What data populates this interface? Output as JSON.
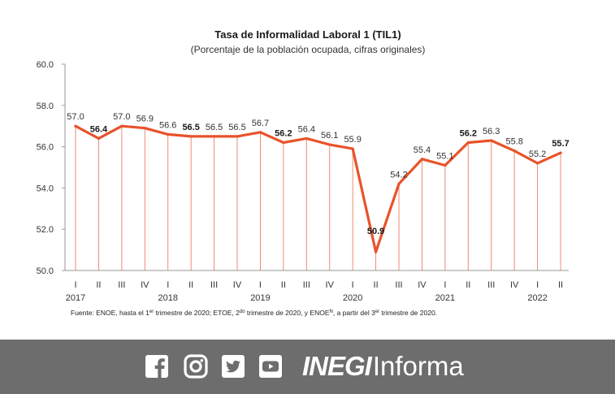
{
  "chart_data": {
    "type": "line",
    "title": "Tasa de Informalidad Laboral 1 (TIL1)",
    "subtitle": "(Porcentaje de la población ocupada, cifras originales)",
    "ylim": [
      50.0,
      60.0
    ],
    "yticks": [
      "50.0",
      "52.0",
      "54.0",
      "56.0",
      "58.0",
      "60.0"
    ],
    "quarters": [
      "I",
      "II",
      "III",
      "IV",
      "I",
      "II",
      "III",
      "IV",
      "I",
      "II",
      "III",
      "IV",
      "I",
      "II",
      "III",
      "IV",
      "I",
      "II",
      "III",
      "IV",
      "I",
      "II"
    ],
    "years": [
      {
        "label": "2017",
        "index": 0
      },
      {
        "label": "2018",
        "index": 4
      },
      {
        "label": "2019",
        "index": 8
      },
      {
        "label": "2020",
        "index": 12
      },
      {
        "label": "2021",
        "index": 16
      },
      {
        "label": "2022",
        "index": 20
      }
    ],
    "values": [
      57.0,
      56.4,
      57.0,
      56.9,
      56.6,
      56.5,
      56.5,
      56.5,
      56.7,
      56.2,
      56.4,
      56.1,
      55.9,
      50.9,
      54.2,
      55.4,
      55.1,
      56.2,
      56.3,
      55.8,
      55.2,
      55.7
    ],
    "labels": [
      "57.0",
      "56.4",
      "57.0",
      "56.9",
      "56.6",
      "56.5",
      "56.5",
      "56.5",
      "56.7",
      "56.2",
      "56.4",
      "56.1",
      "55.9",
      "50.9",
      "54.2",
      "55.4",
      "55.1",
      "56.2",
      "56.3",
      "55.8",
      "55.2",
      "55.7"
    ],
    "bold": [
      false,
      true,
      false,
      false,
      false,
      true,
      false,
      false,
      false,
      true,
      false,
      false,
      false,
      true,
      false,
      false,
      false,
      true,
      false,
      false,
      false,
      true
    ],
    "line_color": "#e8532b",
    "note_parts": [
      "Fuente: ENOE, hasta el 1",
      "er",
      " trimestre de 2020; ETOE, 2",
      "do",
      " trimestre de 2020, y ENOE",
      "N",
      ", a partir del 3",
      "er",
      " trimestre de 2020."
    ]
  },
  "footer": {
    "background": "#6d6d6d",
    "icons": [
      "facebook-icon",
      "instagram-icon",
      "twitter-icon",
      "youtube-icon"
    ],
    "brand_bold": "INEGI",
    "brand_rest": "Informa"
  }
}
